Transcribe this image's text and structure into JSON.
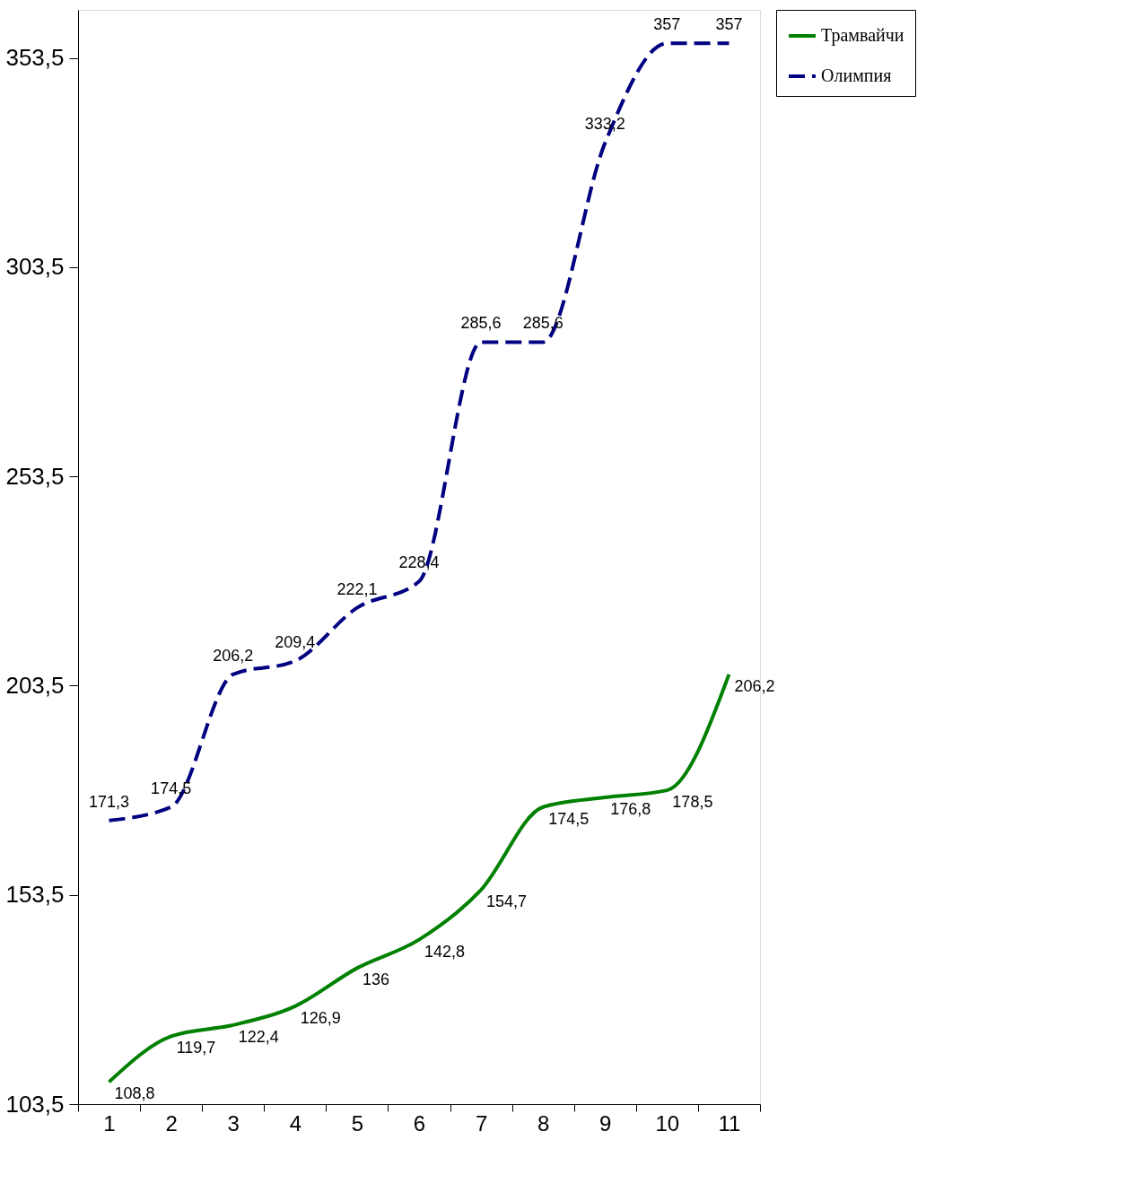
{
  "chart_data": {
    "type": "line",
    "categories": [
      "1",
      "2",
      "3",
      "4",
      "5",
      "6",
      "7",
      "8",
      "9",
      "10",
      "11"
    ],
    "series": [
      {
        "name": "Трамвайчи",
        "color": "#008000",
        "line_style": "solid",
        "values": [
          108.8,
          119.7,
          122.4,
          126.9,
          136,
          142.8,
          154.7,
          174.5,
          176.8,
          178.5,
          206.2
        ]
      },
      {
        "name": "Олимпия",
        "color": "#000080",
        "line_style": "dashed",
        "values": [
          171.3,
          174.5,
          206.2,
          209.4,
          222.1,
          228.4,
          285.6,
          285.6,
          333.2,
          357,
          357
        ]
      }
    ],
    "value_labels": [
      [
        "108,8",
        "119,7",
        "122,4",
        "126,9",
        "136",
        "142,8",
        "154,7",
        "174,5",
        "176,8",
        "178,5",
        "206,2"
      ],
      [
        "171,3",
        "174,5",
        "206,2",
        "209,4",
        "222,1",
        "228,4",
        "285,6",
        "285,6",
        "333,2",
        "357",
        "357"
      ]
    ],
    "ylim": [
      103.5,
      365
    ],
    "yticks": [
      {
        "value": 103.5,
        "label": "103,5"
      },
      {
        "value": 153.5,
        "label": "153,5"
      },
      {
        "value": 203.5,
        "label": "203,5"
      },
      {
        "value": 253.5,
        "label": "253,5"
      },
      {
        "value": 303.5,
        "label": "303,5"
      },
      {
        "value": 353.5,
        "label": "353,5"
      }
    ],
    "grid": false,
    "legend": "right",
    "marker": "none"
  }
}
